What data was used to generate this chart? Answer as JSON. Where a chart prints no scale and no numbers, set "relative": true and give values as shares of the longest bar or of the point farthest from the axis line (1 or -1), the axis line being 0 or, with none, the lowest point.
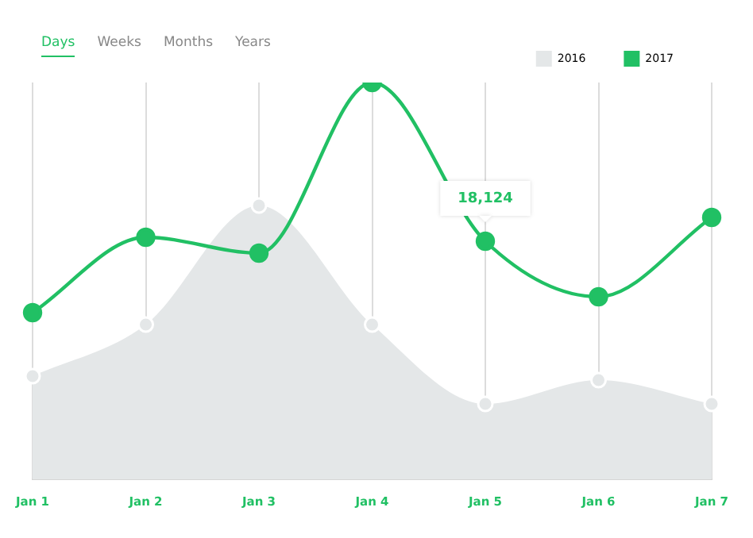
{
  "chart_data": {
    "type": "line",
    "relative": true,
    "categories": [
      "Jan 1",
      "Jan 2",
      "Jan 3",
      "Jan 4",
      "Jan 5",
      "Jan 6",
      "Jan 7"
    ],
    "series": [
      {
        "name": "2016",
        "type": "area",
        "color": "#e4e7e8",
        "values": [
          0.26,
          0.39,
          0.69,
          0.39,
          0.19,
          0.25,
          0.19
        ]
      },
      {
        "name": "2017",
        "type": "line",
        "color": "#21c064",
        "values": [
          0.42,
          0.61,
          0.57,
          1,
          0.6,
          0.46,
          0.66
        ]
      }
    ],
    "annotations": [
      "Days",
      "Weeks",
      "Months",
      "Years",
      {
        "text": "18,124",
        "x": "Jan 5",
        "y": 0.6
      }
    ],
    "grid": "x",
    "legend": "top right",
    "marker": "circle",
    "line_style": "solid"
  }
}
